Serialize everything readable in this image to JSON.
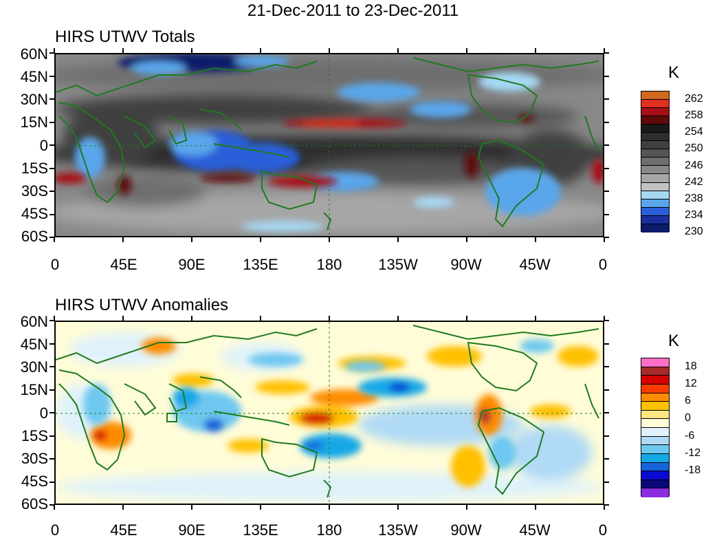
{
  "title": "21-Dec-2011 to 23-Dec-2011",
  "panels": [
    {
      "title": "HIRS UTWV Totals",
      "unit": "K",
      "y_labels": [
        "60N",
        "45N",
        "30N",
        "15N",
        "0",
        "15S",
        "30S",
        "45S",
        "60S"
      ],
      "x_labels": [
        "0",
        "45E",
        "90E",
        "135E",
        "180",
        "135W",
        "90W",
        "45W",
        "0"
      ],
      "colorbar": {
        "colors": [
          "#d2691e",
          "#e0301e",
          "#a50f15",
          "#5e0a0a",
          "#1a1a1a",
          "#2e2e2e",
          "#404040",
          "#555555",
          "#6e6e6e",
          "#888888",
          "#a6a6a6",
          "#c2c2c2",
          "#a6d8f4",
          "#5aa6ea",
          "#2b5fd9",
          "#1b2f9e",
          "#0d1b6b"
        ],
        "labels": [
          "262",
          "258",
          "254",
          "250",
          "246",
          "242",
          "238",
          "234",
          "230"
        ]
      }
    },
    {
      "title": "HIRS UTWV Anomalies",
      "unit": "K",
      "y_labels": [
        "60N",
        "45N",
        "30N",
        "15N",
        "0",
        "15S",
        "30S",
        "45S",
        "60S"
      ],
      "x_labels": [
        "0",
        "45E",
        "90E",
        "135E",
        "180",
        "135W",
        "90W",
        "45W",
        "0"
      ],
      "colorbar": {
        "colors": [
          "#ff6ec7",
          "#a52a2a",
          "#d40000",
          "#ff3c00",
          "#ff8c00",
          "#ffc000",
          "#ffe680",
          "#fffcd8",
          "#dff2fa",
          "#b0daf5",
          "#6ec8f0",
          "#12a8e6",
          "#1464dc",
          "#0a0ad2",
          "#08087a",
          "#8a2be2"
        ],
        "labels": [
          "18",
          "12",
          "6",
          "0",
          "-6",
          "-12",
          "-18"
        ]
      }
    }
  ],
  "colors": {
    "coastline": "#1f7a1f",
    "grid_dash": "#1f7a1f"
  }
}
